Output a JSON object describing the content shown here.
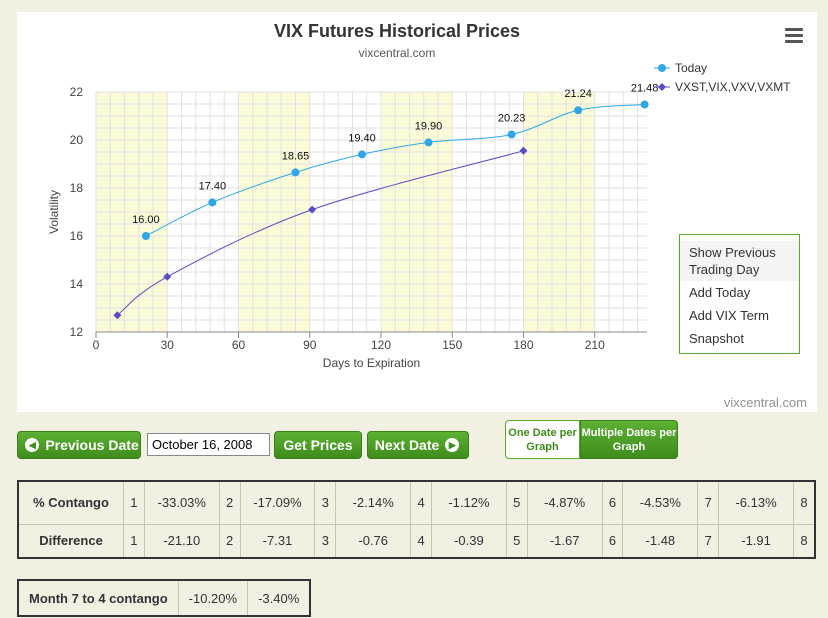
{
  "chart": {
    "title": "VIX Futures Historical Prices",
    "subtitle": "vixcentral.com",
    "credit": "vixcentral.com",
    "menu_icon": "hamburger-icon"
  },
  "chart_data": {
    "type": "line",
    "xlabel": "Days to Expiration",
    "ylabel": "Volatility",
    "xlim": [
      0,
      232
    ],
    "ylim": [
      12,
      22
    ],
    "xticks": [
      "0",
      "30",
      "60",
      "90",
      "120",
      "150",
      "180",
      "210"
    ],
    "yticks": [
      "12",
      "14",
      "16",
      "18",
      "20",
      "22"
    ],
    "grid": true,
    "legend_position": "top-right",
    "band_color": "#fbfbd7",
    "series": [
      {
        "name": "Today",
        "color": "#2fa7e6",
        "marker": "circle",
        "x": [
          21,
          49,
          84,
          112,
          140,
          175,
          203,
          231
        ],
        "y": [
          16.0,
          17.4,
          18.65,
          19.4,
          19.9,
          20.23,
          21.24,
          21.48
        ],
        "labels": [
          "16.00",
          "17.40",
          "18.65",
          "19.40",
          "19.90",
          "20.23",
          "21.24",
          "21.48"
        ]
      },
      {
        "name": "VXST,VIX,VXV,VXMT",
        "color": "#5b4cc1",
        "marker": "diamond",
        "x": [
          9,
          30,
          91,
          180
        ],
        "y": [
          12.7,
          14.3,
          17.1,
          19.55
        ]
      }
    ]
  },
  "context_menu": {
    "items": [
      "Show Previous Trading Day",
      "Add Today",
      "Add VIX Term",
      "Snapshot"
    ]
  },
  "controls": {
    "previous_date": "Previous Date",
    "date_value": "October 16, 2008",
    "get_prices": "Get Prices",
    "next_date": "Next Date",
    "one_date": "One Date per Graph",
    "multiple_dates": "Multiple Dates per Graph"
  },
  "contango": {
    "row1_label": "% Contango",
    "row2_label": "Difference",
    "percent": [
      "-33.03%",
      "-17.09%",
      "-2.14%",
      "-1.12%",
      "-4.87%",
      "-4.53%",
      "-6.13%"
    ],
    "difference": [
      "-21.10",
      "-7.31",
      "-0.76",
      "-0.39",
      "-1.67",
      "-1.48",
      "-1.91"
    ],
    "months": [
      "1",
      "2",
      "3",
      "4",
      "5",
      "6",
      "7",
      "8"
    ]
  },
  "month7to4": {
    "label": "Month 7 to 4 contango",
    "value1": "-10.20%",
    "value2": "-3.40%"
  }
}
